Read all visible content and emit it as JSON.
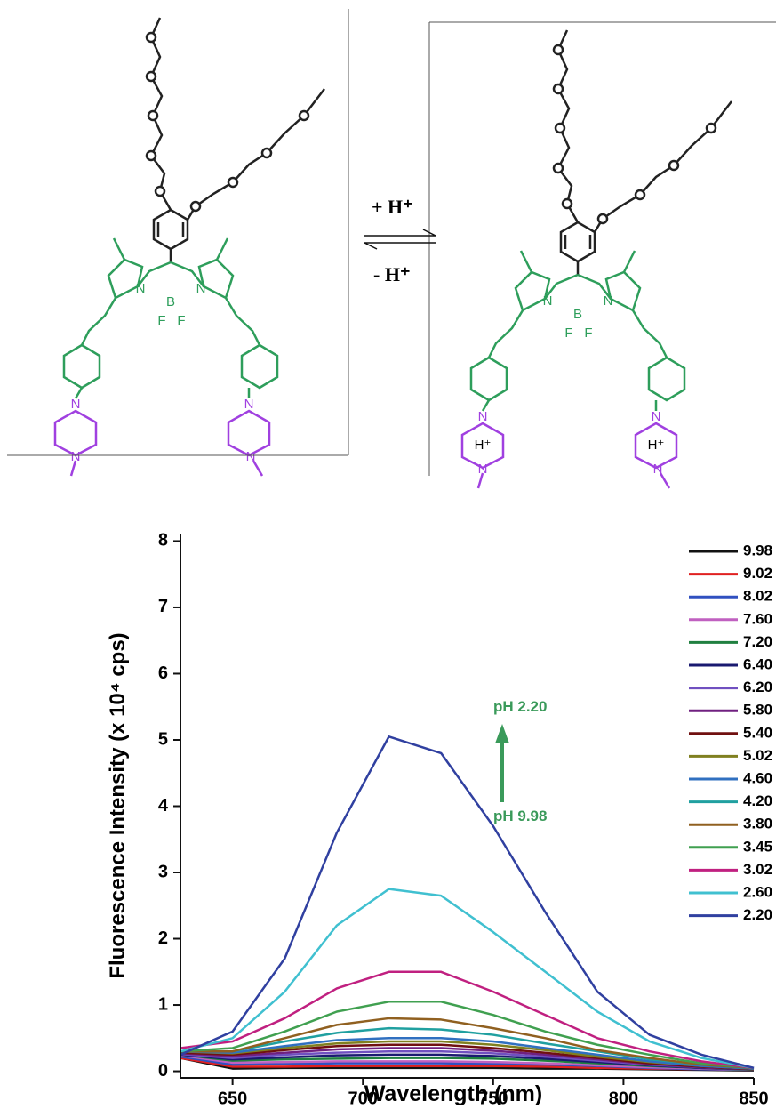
{
  "reaction": {
    "forward": "+ H⁺",
    "backward": "- H⁺"
  },
  "left_molecule": {
    "atoms": [
      "N",
      "N",
      "B",
      "F",
      "F",
      "N",
      "N",
      "N",
      "N"
    ]
  },
  "right_molecule": {
    "atoms": [
      "N",
      "N",
      "B",
      "F",
      "F",
      "N",
      "N",
      "N",
      "N"
    ],
    "protons": [
      "H⁺",
      "H⁺"
    ]
  },
  "chart_data": {
    "type": "line",
    "xlabel": "Wavelength (nm)",
    "ylabel": "Fluorescence Intensity (x 10⁴ cps)",
    "annotations": [
      "pH 2.20",
      "pH 9.98"
    ],
    "x": [
      630,
      650,
      670,
      690,
      710,
      730,
      750,
      770,
      790,
      810,
      830,
      850
    ],
    "xlim": [
      630,
      850
    ],
    "xticks": [
      650,
      700,
      750,
      800,
      850
    ],
    "ylim": [
      -0.1,
      8.1
    ],
    "yticks": [
      0,
      1,
      2,
      3,
      4,
      5,
      6,
      7,
      8
    ],
    "series": [
      {
        "name": "9.98",
        "color": "#111111",
        "values": [
          0.2,
          0.04,
          0.05,
          0.05,
          0.05,
          0.05,
          0.05,
          0.04,
          0.04,
          0.03,
          0.02,
          0.01
        ]
      },
      {
        "name": "9.02",
        "color": "#e02020",
        "values": [
          0.2,
          0.07,
          0.07,
          0.08,
          0.08,
          0.08,
          0.08,
          0.07,
          0.05,
          0.04,
          0.03,
          0.02
        ]
      },
      {
        "name": "8.02",
        "color": "#3050c0",
        "values": [
          0.22,
          0.1,
          0.11,
          0.12,
          0.12,
          0.12,
          0.11,
          0.1,
          0.08,
          0.05,
          0.03,
          0.02
        ]
      },
      {
        "name": "7.60",
        "color": "#c060c0",
        "values": [
          0.24,
          0.13,
          0.14,
          0.15,
          0.15,
          0.15,
          0.14,
          0.12,
          0.09,
          0.06,
          0.04,
          0.02
        ]
      },
      {
        "name": "7.20",
        "color": "#208040",
        "values": [
          0.25,
          0.16,
          0.18,
          0.19,
          0.2,
          0.2,
          0.19,
          0.16,
          0.12,
          0.08,
          0.05,
          0.02
        ]
      },
      {
        "name": "6.40",
        "color": "#1a1a70",
        "values": [
          0.25,
          0.18,
          0.21,
          0.24,
          0.25,
          0.25,
          0.23,
          0.19,
          0.14,
          0.09,
          0.05,
          0.03
        ]
      },
      {
        "name": "6.20",
        "color": "#7050c0",
        "values": [
          0.26,
          0.2,
          0.25,
          0.28,
          0.3,
          0.3,
          0.27,
          0.22,
          0.16,
          0.1,
          0.06,
          0.03
        ]
      },
      {
        "name": "5.80",
        "color": "#702080",
        "values": [
          0.27,
          0.23,
          0.28,
          0.33,
          0.35,
          0.35,
          0.31,
          0.25,
          0.18,
          0.11,
          0.06,
          0.03
        ]
      },
      {
        "name": "5.40",
        "color": "#701010",
        "values": [
          0.28,
          0.25,
          0.32,
          0.38,
          0.4,
          0.4,
          0.35,
          0.28,
          0.2,
          0.12,
          0.07,
          0.03
        ]
      },
      {
        "name": "5.02",
        "color": "#808020",
        "values": [
          0.3,
          0.27,
          0.35,
          0.42,
          0.45,
          0.45,
          0.4,
          0.32,
          0.22,
          0.14,
          0.08,
          0.04
        ]
      },
      {
        "name": "4.60",
        "color": "#3070c0",
        "values": [
          0.3,
          0.28,
          0.38,
          0.47,
          0.5,
          0.5,
          0.45,
          0.35,
          0.25,
          0.15,
          0.08,
          0.04
        ]
      },
      {
        "name": "4.20",
        "color": "#20a0a0",
        "values": [
          0.3,
          0.3,
          0.45,
          0.58,
          0.65,
          0.63,
          0.55,
          0.42,
          0.3,
          0.18,
          0.1,
          0.05
        ]
      },
      {
        "name": "3.80",
        "color": "#906020",
        "values": [
          0.3,
          0.3,
          0.5,
          0.7,
          0.8,
          0.78,
          0.65,
          0.5,
          0.32,
          0.2,
          0.1,
          0.05
        ]
      },
      {
        "name": "3.45",
        "color": "#40a050",
        "values": [
          0.3,
          0.35,
          0.6,
          0.9,
          1.05,
          1.05,
          0.85,
          0.6,
          0.4,
          0.25,
          0.12,
          0.05
        ]
      },
      {
        "name": "3.02",
        "color": "#c02080",
        "values": [
          0.35,
          0.45,
          0.8,
          1.25,
          1.5,
          1.5,
          1.2,
          0.85,
          0.5,
          0.3,
          0.15,
          0.05
        ]
      },
      {
        "name": "2.60",
        "color": "#40c0d0",
        "values": [
          0.3,
          0.5,
          1.2,
          2.2,
          2.75,
          2.65,
          2.1,
          1.5,
          0.9,
          0.45,
          0.2,
          0.05
        ]
      },
      {
        "name": "2.20",
        "color": "#3040a0",
        "values": [
          0.25,
          0.6,
          1.7,
          3.6,
          5.05,
          4.8,
          3.7,
          2.4,
          1.2,
          0.55,
          0.25,
          0.05
        ]
      }
    ]
  }
}
